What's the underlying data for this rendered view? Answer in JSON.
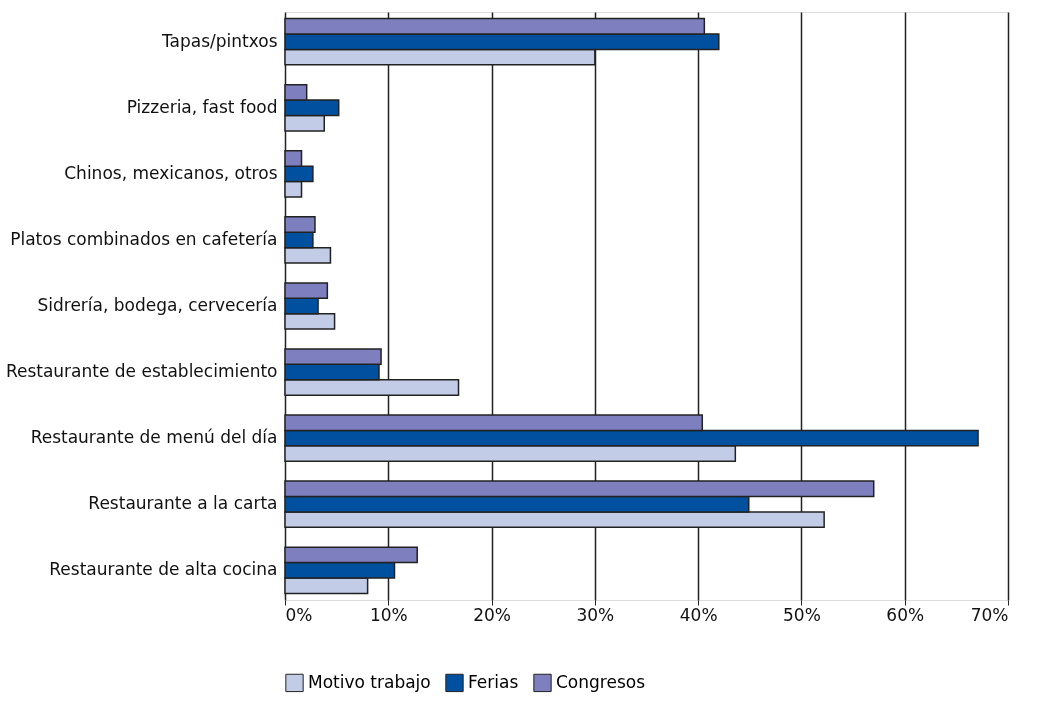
{
  "chart_data": {
    "type": "bar",
    "orientation": "horizontal",
    "categories": [
      "Tapas/pintxos",
      "Pizzeria, fast food",
      "Chinos, mexicanos, otros",
      "Platos combinados en cafetería",
      "Sidrería, bodega, cervecería",
      "Restaurante de establecimiento",
      "Restaurante de menú del día",
      "Restaurante a la carta",
      "Restaurante de alta cocina"
    ],
    "series": [
      {
        "name": "Motivo trabajo",
        "color": "#c3cce6",
        "values": [
          30.0,
          3.8,
          1.6,
          4.4,
          4.8,
          16.8,
          43.6,
          52.2,
          8.0
        ]
      },
      {
        "name": "Ferias",
        "color": "#0050a0",
        "values": [
          42.0,
          5.2,
          2.7,
          2.7,
          3.2,
          9.1,
          67.1,
          44.9,
          10.6
        ]
      },
      {
        "name": "Congresos",
        "color": "#7e7fbe",
        "values": [
          40.6,
          2.1,
          1.6,
          2.9,
          4.1,
          9.3,
          40.4,
          57.0,
          12.8
        ]
      }
    ],
    "xlim": [
      0,
      70
    ],
    "xticks": [
      {
        "value": 0,
        "label": "0%"
      },
      {
        "value": 10,
        "label": "10%"
      },
      {
        "value": 20,
        "label": "20%"
      },
      {
        "value": 30,
        "label": "30%"
      },
      {
        "value": 40,
        "label": "40%"
      },
      {
        "value": 50,
        "label": "50%"
      },
      {
        "value": 60,
        "label": "60%"
      },
      {
        "value": 70,
        "label": "70%"
      }
    ],
    "grid": "x",
    "legend": "bottom"
  }
}
